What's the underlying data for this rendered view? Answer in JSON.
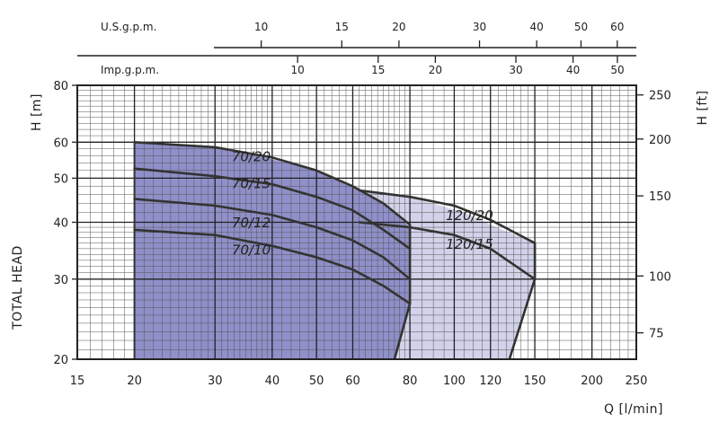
{
  "chart_data": {
    "type": "line",
    "x_scale": "log",
    "y_scale": "log",
    "xlim": [
      15,
      250
    ],
    "ylim": [
      20,
      80
    ],
    "x_ticks": [
      15,
      20,
      30,
      40,
      50,
      60,
      80,
      100,
      120,
      150,
      200,
      250
    ],
    "y_ticks": [
      20,
      30,
      40,
      50,
      60,
      80
    ],
    "xlabel": "Q [l/min]",
    "ylabel_left_top": "H [m]",
    "ylabel_left_bottom": "TOTAL HEAD",
    "ylabel_right": "H [ft]",
    "y2_ticks": [
      75,
      100,
      150,
      200,
      250
    ],
    "us_gpm_label": "U.S.g.p.m.",
    "us_gpm_ticks": [
      10,
      15,
      20,
      30,
      40,
      50,
      60
    ],
    "imp_gpm_label": "Imp.g.p.m.",
    "imp_gpm_ticks": [
      10,
      15,
      20,
      30,
      40,
      50
    ],
    "grid": true,
    "regions": [
      {
        "color": "#8f8fc9",
        "points": [
          [
            20,
            60
          ],
          [
            30,
            58.5
          ],
          [
            40,
            55
          ],
          [
            50,
            52
          ],
          [
            62,
            47
          ],
          [
            72,
            43
          ],
          [
            80,
            39
          ],
          [
            80,
            36
          ],
          [
            80,
            32.5
          ],
          [
            80,
            29.5
          ],
          [
            80,
            26.5
          ],
          [
            74,
            20
          ],
          [
            20,
            20
          ]
        ]
      },
      {
        "color": "#d2d2ea",
        "points": [
          [
            62,
            47
          ],
          [
            75,
            46
          ],
          [
            90,
            44
          ],
          [
            105,
            42
          ],
          [
            120,
            39.5
          ],
          [
            150,
            36
          ],
          [
            150,
            30
          ],
          [
            132,
            20
          ],
          [
            74,
            20
          ],
          [
            80,
            26.5
          ],
          [
            80,
            39
          ],
          [
            72,
            43
          ]
        ]
      }
    ],
    "series": [
      {
        "name": "70/20",
        "label_at": [
          36,
          54.5
        ],
        "values": [
          [
            20,
            60
          ],
          [
            30,
            58.5
          ],
          [
            40,
            55.5
          ],
          [
            50,
            52
          ],
          [
            60,
            48
          ],
          [
            70,
            44
          ],
          [
            80,
            39.5
          ]
        ]
      },
      {
        "name": "70/15",
        "label_at": [
          36,
          47.5
        ],
        "values": [
          [
            20,
            52.5
          ],
          [
            30,
            50.5
          ],
          [
            40,
            48.5
          ],
          [
            50,
            45.5
          ],
          [
            60,
            42.5
          ],
          [
            70,
            38.5
          ],
          [
            80,
            35
          ]
        ]
      },
      {
        "name": "70/12",
        "label_at": [
          36,
          39
        ],
        "values": [
          [
            20,
            45
          ],
          [
            30,
            43.5
          ],
          [
            40,
            41.5
          ],
          [
            50,
            39
          ],
          [
            60,
            36.5
          ],
          [
            70,
            33.5
          ],
          [
            80,
            30
          ]
        ]
      },
      {
        "name": "70/10",
        "label_at": [
          36,
          34
        ],
        "values": [
          [
            20,
            38.5
          ],
          [
            30,
            37.5
          ],
          [
            40,
            35.5
          ],
          [
            50,
            33.5
          ],
          [
            60,
            31.5
          ],
          [
            70,
            29
          ],
          [
            80,
            26.5
          ]
        ]
      },
      {
        "name": "120/20",
        "label_at": [
          108,
          40.5
        ],
        "values": [
          [
            62,
            47
          ],
          [
            80,
            45.5
          ],
          [
            100,
            43.5
          ],
          [
            120,
            40.5
          ],
          [
            150,
            36
          ]
        ]
      },
      {
        "name": "120/15",
        "label_at": [
          108,
          35
        ],
        "values": [
          [
            62,
            40
          ],
          [
            80,
            39
          ],
          [
            100,
            37.5
          ],
          [
            120,
            35
          ],
          [
            150,
            30
          ]
        ]
      }
    ],
    "pump_limits": [
      {
        "values": [
          [
            80,
            39.5
          ],
          [
            80,
            36
          ],
          [
            80,
            32.5
          ],
          [
            80,
            29.5
          ],
          [
            80,
            26.5
          ],
          [
            74,
            20
          ]
        ]
      },
      {
        "values": [
          [
            150,
            36
          ],
          [
            150,
            30
          ],
          [
            132,
            20
          ]
        ]
      }
    ]
  }
}
